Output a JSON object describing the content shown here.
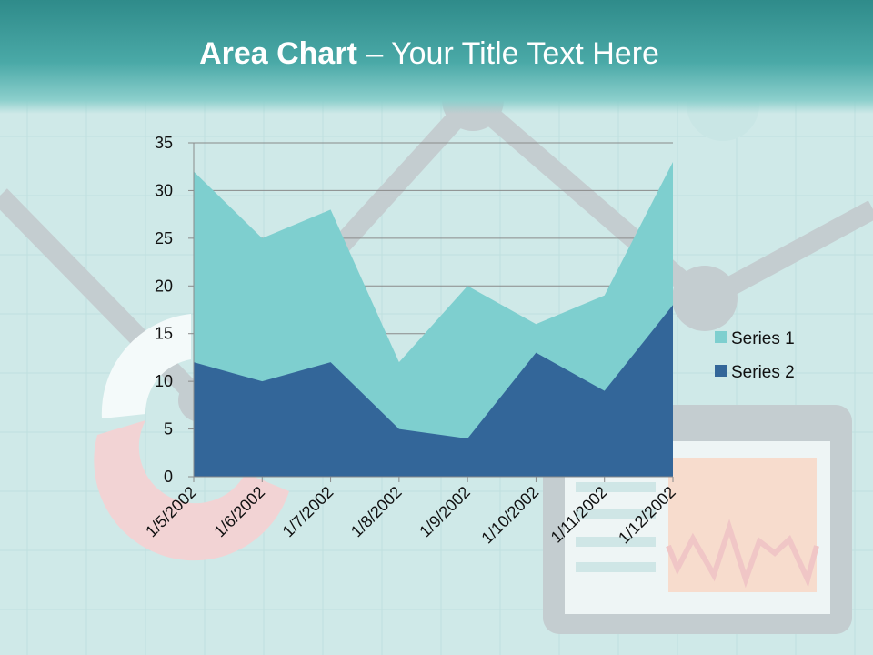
{
  "slide": {
    "title_bold": "Area Chart",
    "title_rest": " – Your Title Text Here"
  },
  "colors": {
    "series1": "#7ecfcf",
    "series2": "#336699",
    "header": "#3a9c9a",
    "background": "#cfe9e8"
  },
  "chart_data": {
    "type": "area",
    "stacked": true,
    "categories": [
      "1/5/2002",
      "1/6/2002",
      "1/7/2002",
      "1/8/2002",
      "1/9/2002",
      "1/10/2002",
      "1/11/2002",
      "1/12/2002"
    ],
    "series": [
      {
        "name": "Series 1",
        "values": [
          20,
          15,
          16,
          7,
          16,
          3,
          10,
          15
        ],
        "color": "#7ecfcf"
      },
      {
        "name": "Series 2",
        "values": [
          12,
          10,
          12,
          5,
          4,
          13,
          9,
          18
        ],
        "color": "#336699"
      }
    ],
    "ylim": [
      0,
      35
    ],
    "yticks": [
      0,
      5,
      10,
      15,
      20,
      25,
      30,
      35
    ],
    "grid": true,
    "legend_position": "right"
  }
}
